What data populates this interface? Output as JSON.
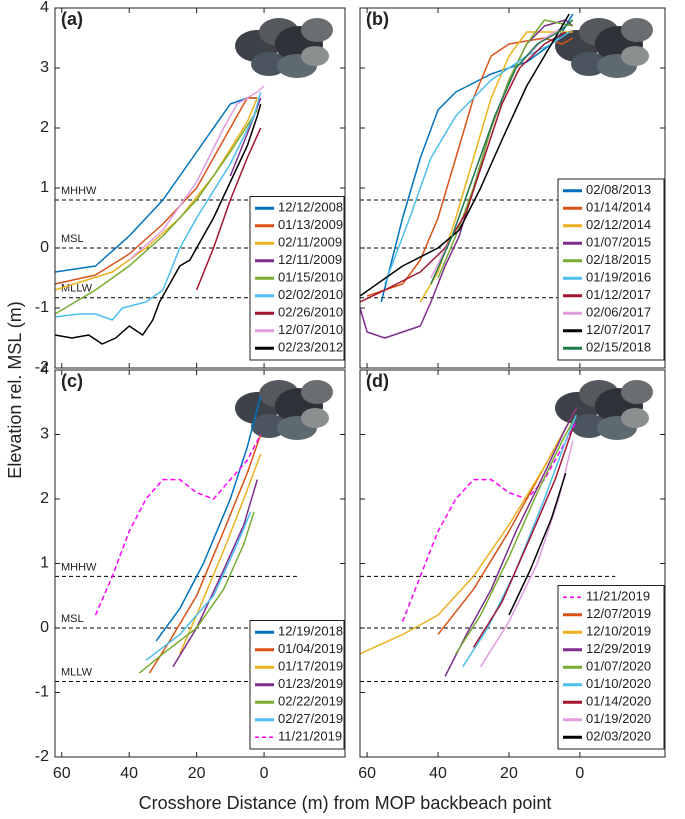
{
  "ylabel": "Elevation rel. MSL (m)",
  "xlabel": "Crosshore Distance (m) from MOP backbeach point",
  "chart_data": [
    {
      "type": "line",
      "label": "(a)",
      "xlim": [
        62,
        -24
      ],
      "ylim": [
        -2,
        4
      ],
      "xticks": [
        60,
        40,
        20,
        0
      ],
      "yticks": [
        -2,
        -1,
        0,
        1,
        2,
        3,
        4
      ],
      "xtick_labels": false,
      "ytick_labels": true,
      "legend": "lower right",
      "hline_xlim": [
        62,
        -10
      ],
      "hlines": [
        {
          "value": 0.8,
          "label": "MHHW"
        },
        {
          "value": 0,
          "label": "MSL"
        },
        {
          "value": -0.83,
          "label": "MLLW"
        }
      ],
      "series": [
        {
          "name": "12/12/2008",
          "color": "#0072BD",
          "x": [
            62,
            50,
            40,
            30,
            20,
            10,
            5,
            2
          ],
          "values": [
            -0.4,
            -0.3,
            0.2,
            0.8,
            1.6,
            2.4,
            2.5,
            2.5
          ]
        },
        {
          "name": "01/13/2009",
          "color": "#D95319",
          "x": [
            62,
            50,
            40,
            30,
            20,
            10,
            5,
            2
          ],
          "values": [
            -0.6,
            -0.45,
            -0.1,
            0.4,
            1.0,
            2.0,
            2.5,
            2.5
          ]
        },
        {
          "name": "02/11/2009",
          "color": "#EDB120",
          "x": [
            62,
            45,
            35,
            25,
            15,
            5,
            2
          ],
          "values": [
            -0.7,
            -0.4,
            0,
            0.5,
            1.2,
            2.1,
            2.5
          ]
        },
        {
          "name": "12/11/2009",
          "color": "#7E2F8E",
          "x": [
            10,
            5,
            1
          ],
          "values": [
            1.2,
            1.9,
            2.5
          ]
        },
        {
          "name": "01/15/2010",
          "color": "#77AC30",
          "x": [
            62,
            50,
            40,
            30,
            20,
            10,
            2
          ],
          "values": [
            -1.1,
            -0.7,
            -0.3,
            0.2,
            0.8,
            1.6,
            2.3
          ]
        },
        {
          "name": "02/02/2010",
          "color": "#4DBEEE",
          "x": [
            62,
            55,
            50,
            45,
            42,
            35,
            30,
            25,
            20,
            10,
            3,
            1
          ],
          "values": [
            -1.15,
            -1.1,
            -1.1,
            -1.2,
            -1.0,
            -0.9,
            -0.7,
            0,
            0.5,
            1.4,
            2.2,
            2.6
          ]
        },
        {
          "name": "02/26/2010",
          "color": "#A2142F",
          "x": [
            20,
            15,
            10,
            5,
            1
          ],
          "values": [
            -0.7,
            0,
            0.8,
            1.5,
            2.0
          ]
        },
        {
          "name": "12/07/2010",
          "color": "#E29CE0",
          "x": [
            40,
            30,
            20,
            12,
            8,
            2,
            0
          ],
          "values": [
            -0.2,
            0.3,
            1.1,
            2.0,
            2.4,
            2.6,
            2.7
          ]
        },
        {
          "name": "02/23/2012",
          "color": "#000000",
          "x": [
            62,
            57,
            52,
            48,
            44,
            40,
            36,
            33,
            31,
            28,
            25,
            22,
            20,
            15,
            10,
            5,
            2,
            1
          ],
          "values": [
            -1.45,
            -1.5,
            -1.45,
            -1.6,
            -1.5,
            -1.3,
            -1.45,
            -1.2,
            -0.9,
            -0.6,
            -0.3,
            -0.2,
            0,
            0.5,
            1.1,
            1.7,
            2.2,
            2.4
          ]
        }
      ]
    },
    {
      "type": "line",
      "label": "(b)",
      "xlim": [
        62,
        -24
      ],
      "ylim": [
        -2,
        4
      ],
      "xticks": [
        60,
        40,
        20,
        0
      ],
      "yticks": [
        -2,
        -1,
        0,
        1,
        2,
        3,
        4
      ],
      "xtick_labels": false,
      "ytick_labels": false,
      "legend": "lower right",
      "hline_xlim": [
        62,
        -10
      ],
      "hlines": [
        {
          "value": 0.8
        },
        {
          "value": 0
        },
        {
          "value": -0.83
        }
      ],
      "series": [
        {
          "name": "02/08/2013",
          "color": "#0072BD",
          "x": [
            56,
            50,
            45,
            40,
            35,
            25,
            15,
            8,
            5,
            2
          ],
          "values": [
            -0.9,
            0.5,
            1.5,
            2.3,
            2.6,
            2.9,
            3.1,
            3.4,
            3.6,
            3.9
          ]
        },
        {
          "name": "01/14/2014",
          "color": "#D95319",
          "x": [
            60,
            50,
            45,
            40,
            35,
            30,
            25,
            20,
            10,
            5,
            2
          ],
          "values": [
            -0.8,
            -0.6,
            -0.2,
            0.5,
            1.5,
            2.5,
            3.2,
            3.4,
            3.5,
            3.4,
            3.5
          ]
        },
        {
          "name": "02/12/2014",
          "color": "#EDB120",
          "x": [
            45,
            40,
            35,
            30,
            25,
            20,
            15,
            8,
            2
          ],
          "values": [
            -0.9,
            -0.4,
            0.5,
            1.5,
            2.5,
            3.2,
            3.6,
            3.6,
            3.6
          ]
        },
        {
          "name": "01/07/2015",
          "color": "#7E2F8E",
          "x": [
            62,
            60,
            55,
            50,
            45,
            42,
            38,
            34,
            30,
            25,
            20,
            15,
            10,
            4,
            2
          ],
          "values": [
            -1.0,
            -1.4,
            -1.5,
            -1.4,
            -1.3,
            -0.9,
            -0.3,
            0.2,
            1.0,
            2.0,
            2.8,
            3.4,
            3.7,
            3.8,
            3.7
          ]
        },
        {
          "name": "02/18/2015",
          "color": "#77AC30",
          "x": [
            40,
            35,
            30,
            25,
            20,
            15,
            10,
            2
          ],
          "values": [
            -0.5,
            0.2,
            1.0,
            2.0,
            2.8,
            3.4,
            3.8,
            3.7
          ]
        },
        {
          "name": "01/19/2016",
          "color": "#4DBEEE",
          "x": [
            55,
            48,
            42,
            35,
            25,
            15,
            8,
            3
          ],
          "values": [
            -0.6,
            0.5,
            1.5,
            2.2,
            2.8,
            3.2,
            3.4,
            3.6
          ]
        },
        {
          "name": "01/12/2017",
          "color": "#A2142F",
          "x": [
            62,
            55,
            45,
            38,
            32,
            27,
            22,
            17,
            10,
            4
          ],
          "values": [
            -0.9,
            -0.7,
            -0.4,
            0,
            0.6,
            1.5,
            2.4,
            3.0,
            3.4,
            3.6
          ]
        },
        {
          "name": "02/06/2017",
          "color": "#E29CE0",
          "x": [
            42,
            36,
            30,
            24,
            18,
            10,
            4
          ],
          "values": [
            -0.5,
            0.2,
            1.2,
            2.2,
            3.0,
            3.5,
            3.7
          ]
        },
        {
          "name": "12/07/2017",
          "color": "#000000",
          "x": [
            62,
            50,
            40,
            34,
            28,
            22,
            15,
            8,
            3
          ],
          "values": [
            -0.8,
            -0.3,
            0,
            0.3,
            1.0,
            1.8,
            2.7,
            3.4,
            3.9
          ]
        },
        {
          "name": "02/15/2018",
          "color": "#1E7B4A",
          "x": [
            42,
            36,
            30,
            24,
            18,
            12,
            6,
            2
          ],
          "values": [
            -0.6,
            0.2,
            1.2,
            2.2,
            3.0,
            3.4,
            3.6,
            3.8
          ]
        }
      ]
    },
    {
      "type": "line",
      "label": "(c)",
      "xlim": [
        62,
        -24
      ],
      "ylim": [
        -2,
        4
      ],
      "xticks": [
        60,
        40,
        20,
        0
      ],
      "yticks": [
        -2,
        -1,
        0,
        1,
        2,
        3,
        4
      ],
      "xtick_labels": true,
      "ytick_labels": true,
      "legend": "lower right",
      "hline_xlim": [
        62,
        -10
      ],
      "hlines": [
        {
          "value": 0.8,
          "label": "MHHW"
        },
        {
          "value": 0,
          "label": "MSL"
        },
        {
          "value": -0.83,
          "label": "MLLW"
        }
      ],
      "series": [
        {
          "name": "12/19/2018",
          "color": "#0072BD",
          "x": [
            32,
            25,
            18,
            10,
            5,
            2,
            1
          ],
          "values": [
            -0.2,
            0.3,
            1.0,
            2.0,
            2.8,
            3.4,
            3.6
          ]
        },
        {
          "name": "01/04/2019",
          "color": "#D95319",
          "x": [
            34,
            28,
            20,
            12,
            5,
            1
          ],
          "values": [
            -0.7,
            -0.2,
            0.5,
            1.5,
            2.4,
            3.0
          ]
        },
        {
          "name": "01/17/2019",
          "color": "#EDB120",
          "x": [
            25,
            20,
            12,
            6,
            1
          ],
          "values": [
            -0.4,
            0.2,
            1.2,
            2.0,
            2.7
          ]
        },
        {
          "name": "01/23/2019",
          "color": "#7E2F8E",
          "x": [
            27,
            20,
            12,
            6,
            2
          ],
          "values": [
            -0.6,
            0,
            0.9,
            1.6,
            2.3
          ]
        },
        {
          "name": "02/22/2019",
          "color": "#77AC30",
          "x": [
            37,
            30,
            20,
            12,
            6,
            3
          ],
          "values": [
            -0.7,
            -0.4,
            0,
            0.6,
            1.3,
            1.8
          ]
        },
        {
          "name": "02/27/2019",
          "color": "#4DBEEE",
          "x": [
            35,
            25,
            15,
            8,
            4
          ],
          "values": [
            -0.5,
            -0.1,
            0.5,
            1.3,
            1.8
          ]
        },
        {
          "name": "11/21/2019",
          "color": "#FF00FF",
          "dash": true,
          "x": [
            50,
            45,
            40,
            35,
            30,
            25,
            20,
            15,
            10,
            5,
            1
          ],
          "values": [
            0.2,
            0.8,
            1.5,
            2.0,
            2.3,
            2.3,
            2.1,
            2.0,
            2.3,
            2.6,
            3.0
          ]
        }
      ]
    },
    {
      "type": "line",
      "label": "(d)",
      "xlim": [
        62,
        -24
      ],
      "ylim": [
        -2,
        4
      ],
      "xticks": [
        60,
        40,
        20,
        0
      ],
      "yticks": [
        -2,
        -1,
        0,
        1,
        2,
        3,
        4
      ],
      "xtick_labels": true,
      "ytick_labels": false,
      "legend": "lower right",
      "hline_xlim": [
        62,
        -10
      ],
      "hlines": [
        {
          "value": 0.8
        },
        {
          "value": 0
        },
        {
          "value": -0.83
        }
      ],
      "series": [
        {
          "name": "11/21/2019",
          "color": "#FF00FF",
          "dash": true,
          "x": [
            50,
            45,
            40,
            35,
            30,
            25,
            20,
            15,
            10,
            5,
            1
          ],
          "values": [
            0.1,
            0.8,
            1.5,
            2.0,
            2.3,
            2.3,
            2.1,
            2.0,
            2.3,
            2.8,
            3.2
          ]
        },
        {
          "name": "12/07/2019",
          "color": "#D95319",
          "x": [
            40,
            30,
            20,
            10,
            4,
            1
          ],
          "values": [
            -0.1,
            0.6,
            1.5,
            2.5,
            3.1,
            3.4
          ]
        },
        {
          "name": "12/10/2019",
          "color": "#EDB120",
          "x": [
            62,
            50,
            40,
            30,
            20,
            10,
            4,
            1
          ],
          "values": [
            -0.4,
            -0.1,
            0.2,
            0.8,
            1.6,
            2.5,
            3.1,
            3.4
          ]
        },
        {
          "name": "12/29/2019",
          "color": "#7E2F8E",
          "x": [
            38,
            32,
            25,
            18,
            10,
            4,
            1
          ],
          "values": [
            -0.75,
            -0.1,
            0.6,
            1.5,
            2.4,
            3.1,
            3.4
          ]
        },
        {
          "name": "01/07/2020",
          "color": "#77AC30",
          "x": [
            35,
            28,
            20,
            12,
            5,
            1
          ],
          "values": [
            -0.4,
            0.2,
            1.1,
            2.1,
            2.9,
            3.3
          ]
        },
        {
          "name": "01/10/2020",
          "color": "#4DBEEE",
          "x": [
            33,
            26,
            18,
            10,
            4,
            1
          ],
          "values": [
            -0.6,
            0,
            0.9,
            2.0,
            2.9,
            3.3
          ]
        },
        {
          "name": "01/14/2020",
          "color": "#A2142F",
          "x": [
            30,
            22,
            14,
            7,
            2
          ],
          "values": [
            -0.3,
            0.4,
            1.4,
            2.3,
            3.1
          ]
        },
        {
          "name": "01/19/2020",
          "color": "#E29CE0",
          "x": [
            28,
            20,
            12,
            6,
            2
          ],
          "values": [
            -0.6,
            0.1,
            1.0,
            2.0,
            2.9
          ]
        },
        {
          "name": "02/03/2020",
          "color": "#000000",
          "x": [
            20,
            14,
            8,
            4
          ],
          "values": [
            0.2,
            0.9,
            1.7,
            2.4
          ]
        }
      ]
    }
  ]
}
